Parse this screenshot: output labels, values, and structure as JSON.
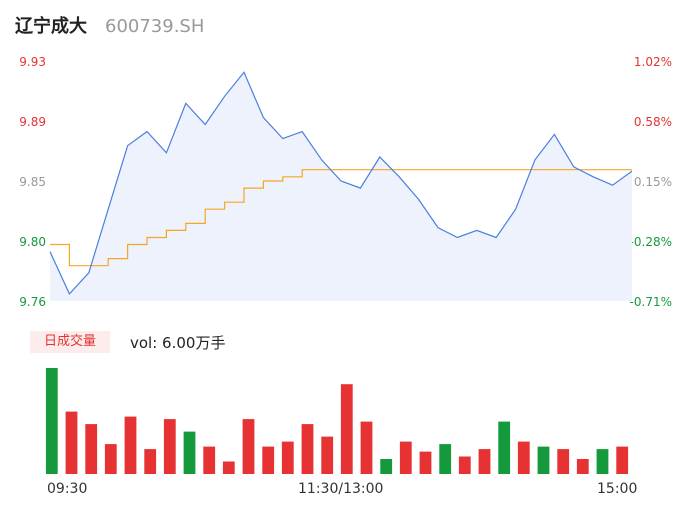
{
  "header": {
    "name": "辽宁成大",
    "code": "600739.SH"
  },
  "price_axis": {
    "ticks": [
      "9.93",
      "9.89",
      "9.85",
      "9.80",
      "9.76"
    ]
  },
  "pct_axis": {
    "ticks": [
      "1.02%",
      "0.58%",
      "0.15%",
      "-0.28%",
      "-0.71%"
    ]
  },
  "volume_panel": {
    "badge": "日成交量",
    "vol_label": "vol: 6.00万手"
  },
  "time_axis": {
    "ticks": [
      "09:30",
      "11:30/13:00",
      "15:00"
    ]
  },
  "colors": {
    "price_line": "#4a7fe0",
    "avg_line": "#f5a623",
    "up": "#e63232",
    "down": "#149a3c",
    "area_fill": "#eef2fc"
  },
  "chart_data": {
    "type": "line",
    "title": "",
    "ylim": [
      9.76,
      9.93
    ],
    "x": [
      "09:30",
      "09:38",
      "09:46",
      "09:54",
      "10:02",
      "10:10",
      "10:18",
      "10:26",
      "10:34",
      "10:42",
      "10:50",
      "10:58",
      "11:06",
      "11:14",
      "11:22",
      "11:30",
      "13:08",
      "13:16",
      "13:24",
      "13:32",
      "13:40",
      "13:48",
      "13:56",
      "14:04",
      "14:12",
      "14:20",
      "14:28",
      "14:36",
      "14:44",
      "14:52",
      "15:00"
    ],
    "series": [
      {
        "name": "",
        "values": [
          9.795,
          9.765,
          9.78,
          9.825,
          9.87,
          9.88,
          9.865,
          9.9,
          9.885,
          9.905,
          9.922,
          9.89,
          9.875,
          9.88,
          9.86,
          9.845,
          9.84,
          9.862,
          9.848,
          9.832,
          9.812,
          9.805,
          9.81,
          9.805,
          9.825,
          9.86,
          9.878,
          9.855,
          9.848,
          9.842,
          9.852
        ]
      },
      {
        "name": "",
        "values": [
          9.8,
          9.785,
          9.785,
          9.79,
          9.8,
          9.805,
          9.81,
          9.815,
          9.825,
          9.83,
          9.84,
          9.845,
          9.848,
          9.853,
          9.853,
          9.853,
          9.853,
          9.853,
          9.853,
          9.853,
          9.853,
          9.853,
          9.853,
          9.853,
          9.853,
          9.853,
          9.853,
          9.853,
          9.853,
          9.853,
          9.853
        ]
      }
    ],
    "volume": {
      "values": [
        85,
        50,
        40,
        24,
        46,
        20,
        44,
        34,
        22,
        10,
        44,
        22,
        26,
        40,
        30,
        72,
        42,
        12,
        26,
        18,
        24,
        14,
        20,
        42,
        26,
        22,
        20,
        12,
        20,
        22
      ],
      "up": [
        false,
        true,
        true,
        true,
        true,
        true,
        true,
        false,
        true,
        true,
        true,
        true,
        true,
        true,
        true,
        true,
        true,
        false,
        true,
        true,
        false,
        true,
        true,
        false,
        true,
        false,
        true,
        true,
        false,
        true
      ]
    }
  }
}
